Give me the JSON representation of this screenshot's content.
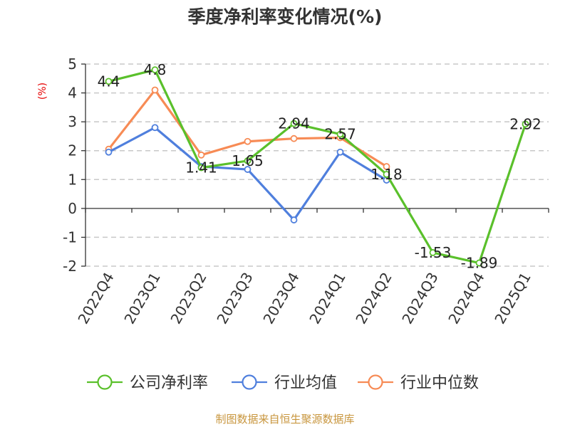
{
  "chart_data": {
    "type": "line",
    "title": "季度净利率变化情况(%)",
    "ylabel": "(%)",
    "categories": [
      "2022Q4",
      "2023Q1",
      "2023Q2",
      "2023Q3",
      "2023Q4",
      "2024Q1",
      "2024Q2",
      "2024Q3",
      "2024Q4",
      "2025Q1"
    ],
    "ylim": [
      -2,
      5
    ],
    "yticks": [
      "5",
      "4",
      "3",
      "2",
      "1",
      "0",
      "-1",
      "-2"
    ],
    "grid": true,
    "legend_position": "bottom",
    "series": [
      {
        "name": "公司净利率",
        "color": "#5ac02b",
        "values": [
          4.4,
          4.8,
          1.41,
          1.65,
          2.94,
          2.57,
          1.18,
          -1.53,
          -1.89,
          2.92
        ],
        "labels": [
          "4.4",
          "4.8",
          "1.41",
          "1.65",
          "2.94",
          "2.57",
          "1.18",
          "-1.53",
          "-1.89",
          "2.92"
        ]
      },
      {
        "name": "行业均值",
        "color": "#4f7fdd",
        "values": [
          1.95,
          2.8,
          1.45,
          1.35,
          -0.4,
          1.95,
          0.98,
          null,
          null,
          null
        ]
      },
      {
        "name": "行业中位数",
        "color": "#f78b55",
        "values": [
          2.05,
          4.1,
          1.85,
          2.32,
          2.42,
          2.45,
          1.45,
          null,
          null,
          null
        ]
      }
    ],
    "source": "制图数据来自恒生聚源数据库"
  }
}
